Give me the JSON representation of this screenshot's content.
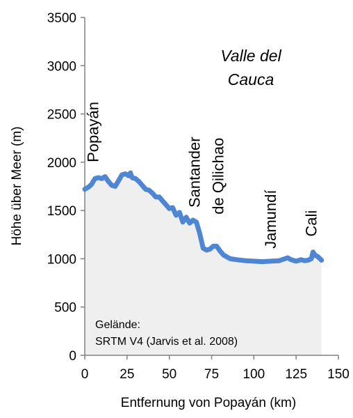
{
  "chart_data": {
    "type": "area",
    "xlabel": "Entfernung von Popayán (km)",
    "ylabel": "Höhe über Meer (m)",
    "xlim": [
      0,
      150
    ],
    "ylim": [
      0,
      3500
    ],
    "xticks": [
      0,
      25,
      50,
      75,
      100,
      125,
      150
    ],
    "yticks": [
      0,
      500,
      1000,
      1500,
      2000,
      2500,
      3000,
      3500
    ],
    "grid": false,
    "colors": {
      "line": "#4f86d4",
      "fill": "#efefef",
      "axis": "#808080"
    },
    "series": [
      {
        "x": [
          0,
          2,
          4,
          6,
          8,
          10,
          12,
          14,
          16,
          18,
          20,
          22,
          24,
          26,
          27,
          28,
          30,
          32,
          34,
          36,
          38,
          40,
          42,
          44,
          46,
          48,
          50,
          52,
          54,
          56,
          58,
          60,
          62,
          64,
          66,
          68,
          70,
          72,
          74,
          76,
          78,
          80,
          82,
          84,
          86,
          88,
          90,
          95,
          100,
          105,
          110,
          115,
          120,
          122,
          125,
          128,
          130,
          132,
          134,
          135,
          136,
          138,
          140
        ],
        "y": [
          1720,
          1740,
          1770,
          1830,
          1840,
          1830,
          1850,
          1800,
          1760,
          1750,
          1810,
          1870,
          1880,
          1860,
          1890,
          1840,
          1830,
          1800,
          1760,
          1720,
          1710,
          1680,
          1640,
          1640,
          1600,
          1560,
          1520,
          1530,
          1450,
          1480,
          1380,
          1430,
          1370,
          1400,
          1380,
          1260,
          1110,
          1090,
          1100,
          1130,
          1130,
          1080,
          1040,
          1020,
          1000,
          995,
          990,
          980,
          975,
          970,
          975,
          980,
          1010,
          990,
          975,
          990,
          980,
          985,
          1000,
          1070,
          1040,
          1020,
          985
        ]
      }
    ],
    "annotations": [
      {
        "text": "Popayán",
        "x": 8,
        "y": 2000,
        "rotation": -90
      },
      {
        "text": "Santander",
        "x": 68,
        "y": 1530,
        "rotation": -90
      },
      {
        "text": "de Qilichao",
        "x": 82,
        "y": 1460,
        "rotation": -90
      },
      {
        "text": "Jamundí",
        "x": 113,
        "y": 1105,
        "rotation": -90
      },
      {
        "text": "Cali",
        "x": 137,
        "y": 1230,
        "rotation": -90
      }
    ],
    "region_label": [
      "Valle del",
      "Cauca"
    ],
    "source_label": [
      "Gelände:",
      "SRTM V4 (Jarvis et al. 2008)"
    ]
  }
}
